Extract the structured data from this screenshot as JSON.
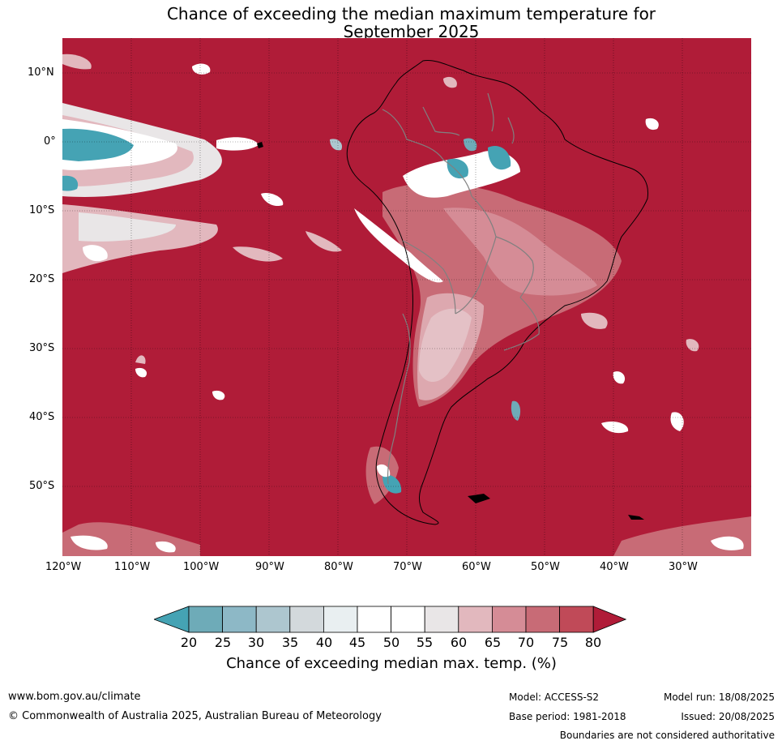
{
  "title": {
    "line1": "Chance of exceeding the median maximum temperature for",
    "line2": "September 2025"
  },
  "map": {
    "lat_labels": [
      "10°N",
      "0°",
      "10°S",
      "20°S",
      "30°S",
      "40°S",
      "50°S"
    ],
    "lon_labels": [
      "120°W",
      "110°W",
      "100°W",
      "90°W",
      "80°W",
      "70°W",
      "60°W",
      "50°W",
      "40°W",
      "30°W"
    ],
    "background_color": "#b01c38",
    "coastline_color": "#000000",
    "border_color": "#808080"
  },
  "colorbar": {
    "ticks": [
      "20",
      "25",
      "30",
      "35",
      "40",
      "45",
      "50",
      "55",
      "60",
      "65",
      "70",
      "75",
      "80"
    ],
    "colors": [
      "#45a3b4",
      "#6eabb8",
      "#8db8c6",
      "#adc6cf",
      "#d3d9dc",
      "#e9eff1",
      "#ffffff",
      "#ffffff",
      "#e9e6e7",
      "#e2b8be",
      "#d58c96",
      "#c86b76",
      "#c04a58",
      "#b01c38"
    ],
    "title": "Chance of exceeding median max. temp. (%)"
  },
  "footer": {
    "website": "www.bom.gov.au/climate",
    "copyright": "© Commonwealth of Australia 2025, Australian Bureau of Meteorology",
    "model": "Model: ACCESS-S2",
    "base_period": "Base period: 1981-2018",
    "model_run": "Model run: 18/08/2025",
    "issued": "Issued: 20/08/2025",
    "disclaimer": "Boundaries are not considered authoritative"
  }
}
